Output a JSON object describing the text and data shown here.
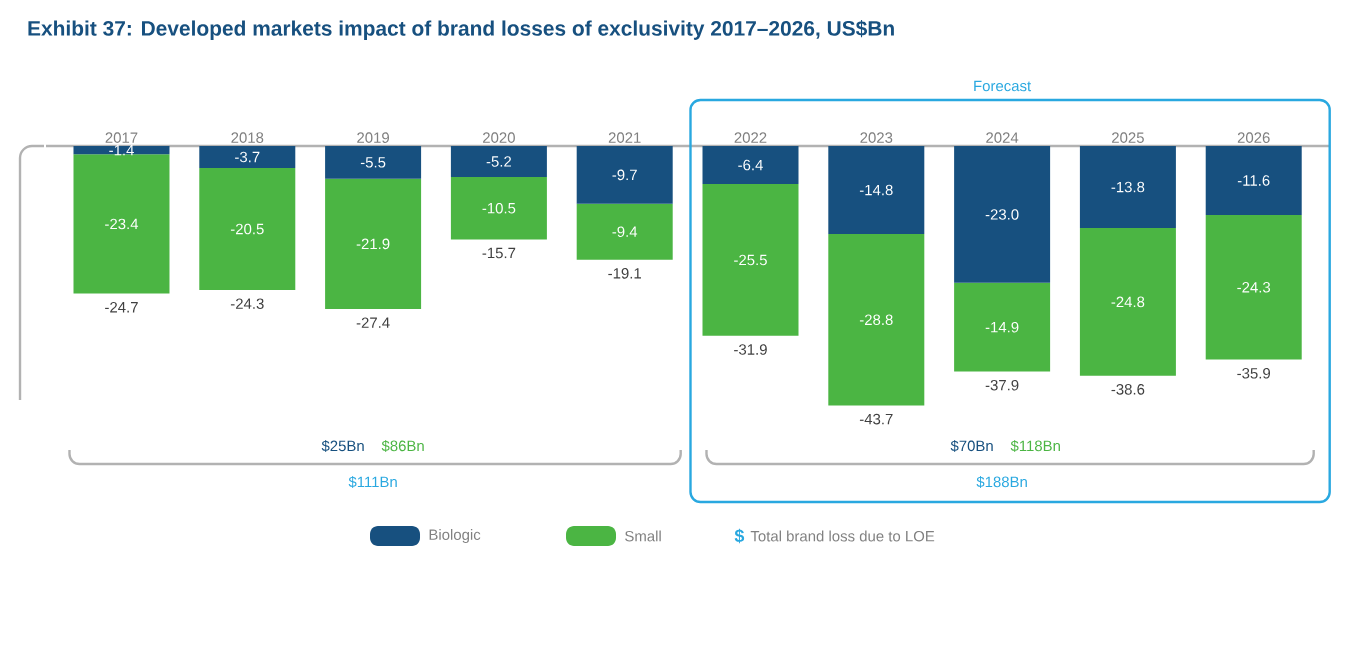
{
  "chart_data": {
    "type": "bar",
    "title": "Exhibit 37: Developed markets impact of brand losses of exclusivity 2017–2026, US$Bn",
    "categories": [
      "2017",
      "2018",
      "2019",
      "2020",
      "2021",
      "2022",
      "2023",
      "2024",
      "2025",
      "2026"
    ],
    "stacked": true,
    "legend": "bottom",
    "series": [
      {
        "name": "Biologic",
        "color": "#17507f",
        "values": [
          -1.4,
          -3.7,
          -5.5,
          -5.2,
          -9.7,
          -6.4,
          -14.8,
          -23.0,
          -13.8,
          -11.6
        ],
        "value_labels": [
          "-1.4",
          "-3.7",
          "-5.5",
          "-5.2",
          "-9.7",
          "-6.4",
          "-14.8",
          "-23.0",
          "-13.8",
          "-11.6"
        ]
      },
      {
        "name": "Small",
        "color": "#4bb543",
        "values": [
          -23.4,
          -20.5,
          -21.9,
          -10.5,
          -9.4,
          -25.5,
          -28.8,
          -14.9,
          -24.8,
          -24.3
        ],
        "value_labels": [
          "-23.4",
          "-20.5",
          "-21.9",
          "-10.5",
          "-9.4",
          "-25.5",
          "-28.8",
          "-14.9",
          "-24.8",
          "-24.3"
        ]
      }
    ],
    "totals": [
      "-24.7",
      "-24.3",
      "-27.4",
      "-15.7",
      "-19.1",
      "-31.9",
      "-43.7",
      "-37.9",
      "-38.6",
      "-35.9"
    ],
    "annotations": [
      "Forecast",
      "$25Bn",
      "$86Bn",
      "$111Bn",
      "$70Bn",
      "$118Bn",
      "$188Bn",
      "$",
      "Total brand loss due to LOE"
    ]
  }
}
